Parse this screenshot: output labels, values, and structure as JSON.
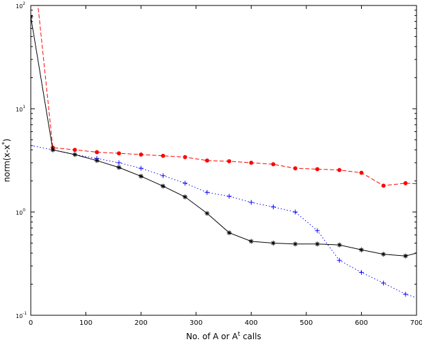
{
  "chart_data": {
    "type": "line",
    "title": "",
    "xlabel": "No. of A or A",
    "xlabel_sup": "t",
    "xlabel_suffix": " calls",
    "ylabel": "norm(x-x",
    "ylabel_sup": "*",
    "ylabel_suffix": ")",
    "xlim": [
      0,
      700
    ],
    "ylim": [
      0.1,
      100
    ],
    "yscale": "log",
    "grid": false,
    "x_ticks": [
      0,
      100,
      200,
      300,
      400,
      500,
      600,
      700
    ],
    "y_ticks": [
      {
        "value": 0.1,
        "base": "10",
        "exp": "-1"
      },
      {
        "value": 1,
        "base": "10",
        "exp": "0"
      },
      {
        "value": 10,
        "base": "10",
        "exp": "1"
      },
      {
        "value": 100,
        "base": "10",
        "exp": "2"
      }
    ],
    "series": [
      {
        "color": "#ff0000",
        "linestyle": "dashed",
        "marker": "dot",
        "x": [
          0,
          13,
          40,
          80,
          120,
          160,
          200,
          240,
          280,
          320,
          360,
          400,
          440,
          480,
          520,
          560,
          600,
          640,
          680,
          700
        ],
        "y": [
          10000,
          100,
          4.2,
          4.0,
          3.8,
          3.7,
          3.6,
          3.5,
          3.4,
          3.15,
          3.1,
          3.0,
          2.9,
          2.65,
          2.6,
          2.55,
          2.4,
          1.8,
          1.9,
          1.88
        ],
        "markers_x": [
          40,
          80,
          120,
          160,
          200,
          240,
          280,
          320,
          360,
          400,
          440,
          480,
          520,
          560,
          600,
          640,
          680
        ]
      },
      {
        "color": "#0000ff",
        "linestyle": "dotted",
        "marker": "plus",
        "x": [
          0,
          40,
          80,
          120,
          160,
          200,
          240,
          280,
          320,
          360,
          400,
          440,
          480,
          520,
          560,
          600,
          640,
          680,
          700
        ],
        "y": [
          4.4,
          4.0,
          3.6,
          3.3,
          3.0,
          2.65,
          2.25,
          1.9,
          1.55,
          1.42,
          1.24,
          1.12,
          1.0,
          0.66,
          0.34,
          0.26,
          0.205,
          0.16,
          0.148
        ],
        "markers_x": [
          0,
          40,
          80,
          120,
          160,
          200,
          240,
          280,
          320,
          360,
          400,
          440,
          480,
          520,
          560,
          600,
          640,
          680
        ]
      },
      {
        "color": "#000000",
        "linestyle": "solid",
        "marker": "star",
        "x": [
          0,
          40,
          80,
          120,
          160,
          200,
          240,
          280,
          320,
          360,
          400,
          440,
          480,
          520,
          560,
          600,
          640,
          680,
          700
        ],
        "y": [
          78,
          4.0,
          3.6,
          3.15,
          2.7,
          2.22,
          1.78,
          1.4,
          0.97,
          0.63,
          0.52,
          0.5,
          0.49,
          0.49,
          0.48,
          0.43,
          0.39,
          0.375,
          0.4
        ],
        "markers_x": [
          0,
          40,
          80,
          120,
          160,
          200,
          240,
          280,
          320,
          360,
          400,
          440,
          480,
          520,
          560,
          600,
          640,
          680
        ]
      }
    ]
  }
}
